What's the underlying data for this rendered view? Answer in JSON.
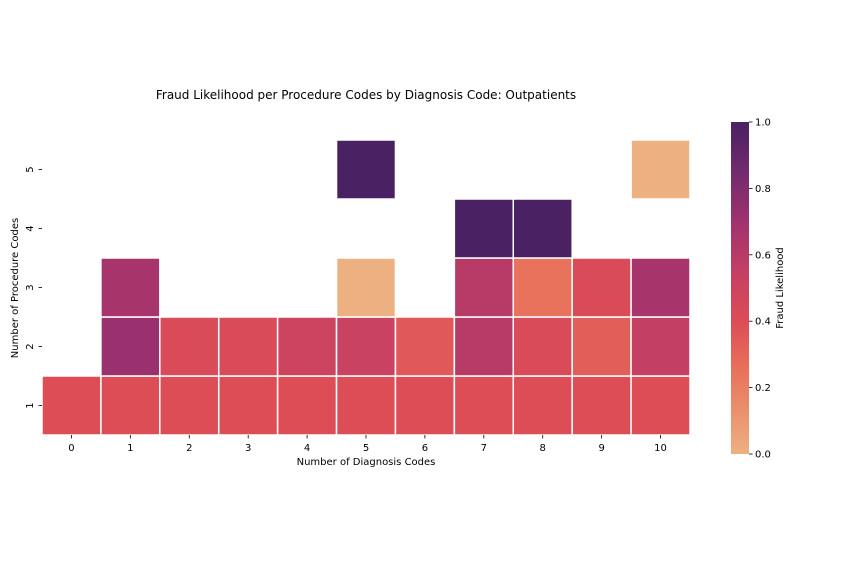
{
  "chart_data": {
    "type": "heatmap",
    "title": "Fraud Likelihood per Procedure Codes by Diagnosis Code: Outpatients",
    "xlabel": "Number of Diagnosis Codes",
    "ylabel": "Number of Procedure Codes",
    "x_categories": [
      "0",
      "1",
      "2",
      "3",
      "4",
      "5",
      "6",
      "7",
      "8",
      "9",
      "10"
    ],
    "y_categories": [
      "1",
      "2",
      "3",
      "4",
      "5"
    ],
    "colorbar": {
      "label": "Fraud Likelihood",
      "range": [
        0.0,
        1.0
      ],
      "ticks": [
        "0.0",
        "0.2",
        "0.4",
        "0.6",
        "0.8",
        "1.0"
      ],
      "colormap": "flare"
    },
    "grid": false,
    "cells": [
      {
        "x": 0,
        "y": 1,
        "value": 0.4
      },
      {
        "x": 1,
        "y": 1,
        "value": 0.4
      },
      {
        "x": 2,
        "y": 1,
        "value": 0.4
      },
      {
        "x": 3,
        "y": 1,
        "value": 0.4
      },
      {
        "x": 4,
        "y": 1,
        "value": 0.4
      },
      {
        "x": 5,
        "y": 1,
        "value": 0.4
      },
      {
        "x": 6,
        "y": 1,
        "value": 0.4
      },
      {
        "x": 7,
        "y": 1,
        "value": 0.4
      },
      {
        "x": 8,
        "y": 1,
        "value": 0.4
      },
      {
        "x": 9,
        "y": 1,
        "value": 0.4
      },
      {
        "x": 10,
        "y": 1,
        "value": 0.4
      },
      {
        "x": 1,
        "y": 2,
        "value": 0.72
      },
      {
        "x": 2,
        "y": 2,
        "value": 0.42
      },
      {
        "x": 3,
        "y": 2,
        "value": 0.42
      },
      {
        "x": 4,
        "y": 2,
        "value": 0.5
      },
      {
        "x": 5,
        "y": 2,
        "value": 0.52
      },
      {
        "x": 6,
        "y": 2,
        "value": 0.35
      },
      {
        "x": 7,
        "y": 2,
        "value": 0.6
      },
      {
        "x": 8,
        "y": 2,
        "value": 0.42
      },
      {
        "x": 9,
        "y": 2,
        "value": 0.33
      },
      {
        "x": 10,
        "y": 2,
        "value": 0.55
      },
      {
        "x": 1,
        "y": 3,
        "value": 0.67
      },
      {
        "x": 5,
        "y": 3,
        "value": 0.0
      },
      {
        "x": 7,
        "y": 3,
        "value": 0.6
      },
      {
        "x": 8,
        "y": 3,
        "value": 0.25
      },
      {
        "x": 9,
        "y": 3,
        "value": 0.42
      },
      {
        "x": 10,
        "y": 3,
        "value": 0.67
      },
      {
        "x": 7,
        "y": 4,
        "value": 1.0
      },
      {
        "x": 8,
        "y": 4,
        "value": 1.0
      },
      {
        "x": 5,
        "y": 5,
        "value": 1.0
      },
      {
        "x": 10,
        "y": 5,
        "value": 0.0
      }
    ]
  }
}
